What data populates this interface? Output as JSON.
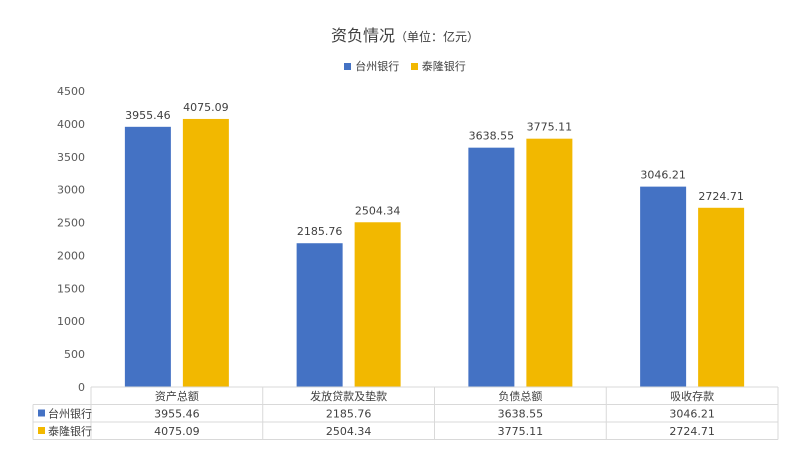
{
  "chart_data": {
    "type": "bar",
    "title": "资负情况",
    "subtitle": "（单位：亿元）",
    "categories": [
      "资产总额",
      "发放贷款及垫款",
      "负债总额",
      "吸收存款"
    ],
    "series": [
      {
        "name": "台州银行",
        "color": "#4472C4",
        "values": [
          3955.46,
          2185.76,
          3638.55,
          3046.21
        ],
        "labels": [
          "3955.46",
          "2185.76",
          "3638.55",
          "3046.21"
        ]
      },
      {
        "name": "泰隆银行",
        "color": "#F2B800",
        "values": [
          4075.09,
          2504.34,
          3775.11,
          2724.71
        ],
        "labels": [
          "4075.09",
          "2504.34",
          "3775.11",
          "2724.71"
        ]
      }
    ],
    "ylim": [
      0,
      4500
    ],
    "yticks": [
      0,
      500,
      1000,
      1500,
      2000,
      2500,
      3000,
      3500,
      4000,
      4500
    ],
    "legend": "top-center",
    "data_table": true
  }
}
